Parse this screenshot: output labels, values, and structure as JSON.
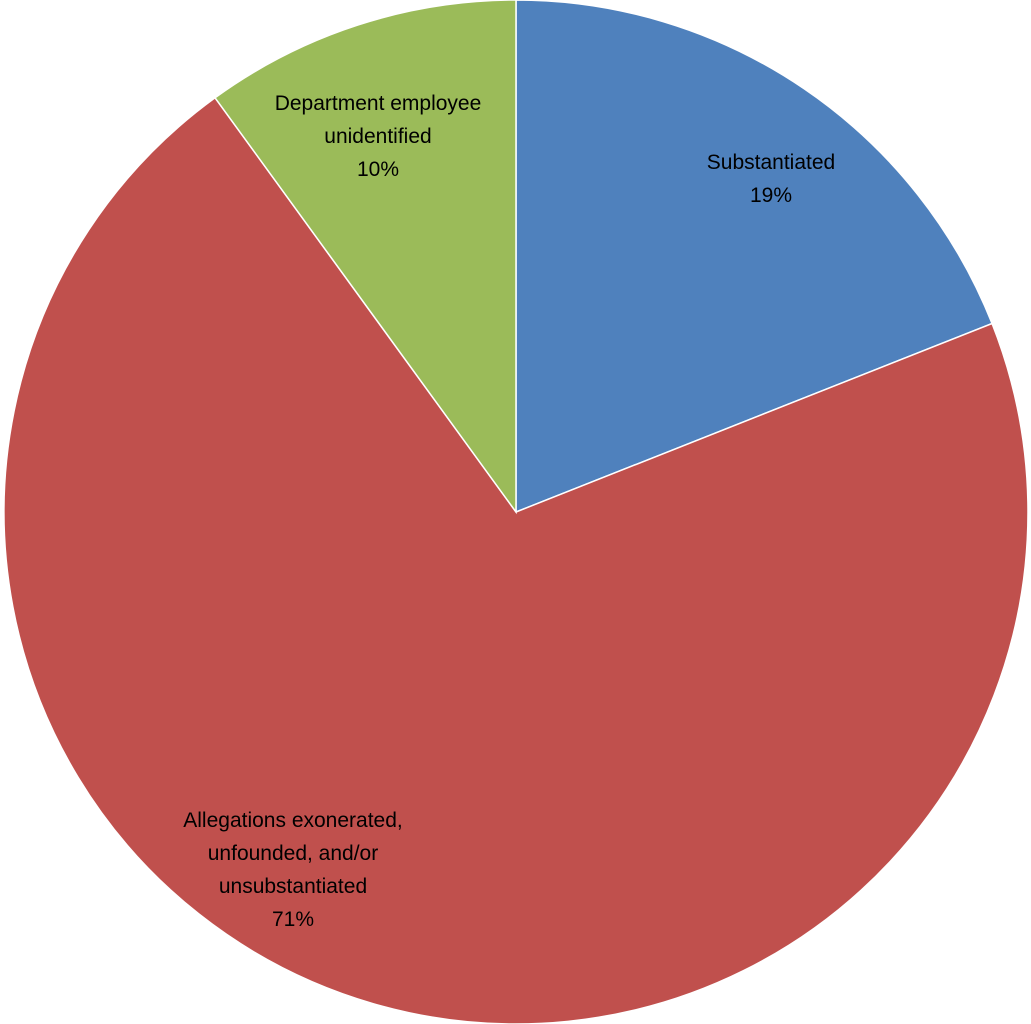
{
  "chart_data": {
    "type": "pie",
    "start_angle_deg": 0,
    "direction": "clockwise",
    "slices": [
      {
        "label_lines": [
          "Substantiated"
        ],
        "pct_text": "19%",
        "value": 19,
        "color": "#4F81BD"
      },
      {
        "label_lines": [
          "Allegations exonerated,",
          "unfounded, and/or",
          "unsubstantiated"
        ],
        "pct_text": "71%",
        "value": 71,
        "color": "#C0504D"
      },
      {
        "label_lines": [
          "Department employee",
          "unidentified"
        ],
        "pct_text": "10%",
        "value": 10,
        "color": "#9BBB59"
      }
    ]
  }
}
